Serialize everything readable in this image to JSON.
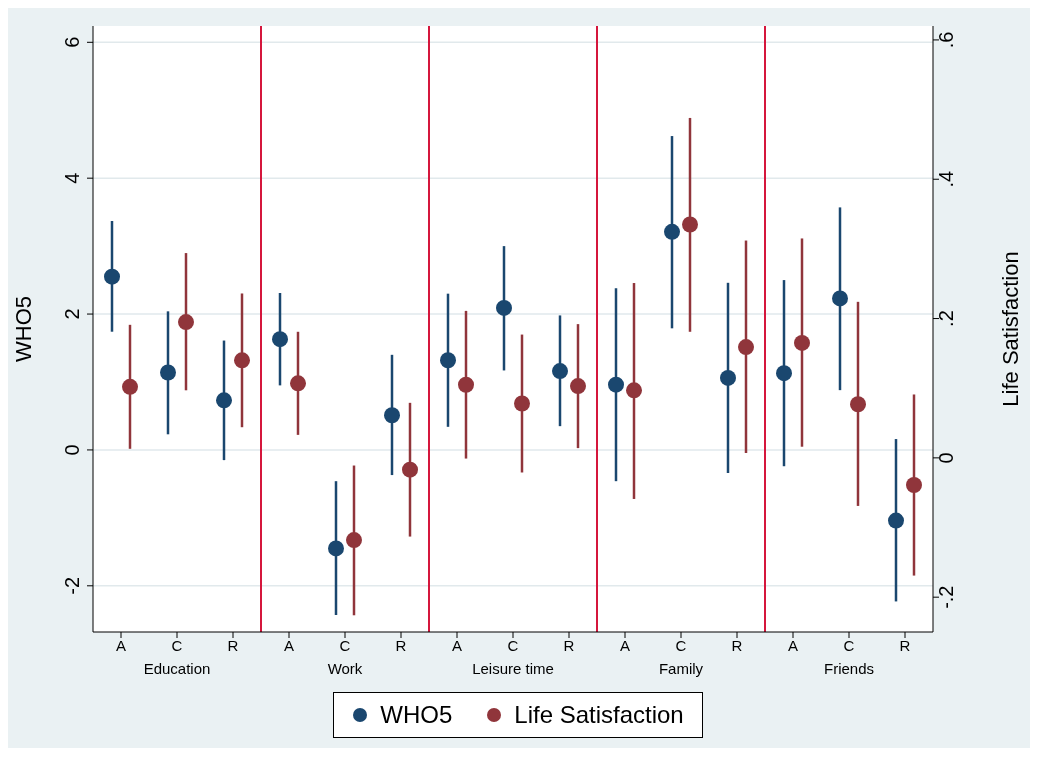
{
  "chart_data": {
    "type": "scatter",
    "ylabel": "WHO5",
    "y2label": "Life Satisfaction",
    "marker": "circle",
    "grid": "y",
    "legend": "bottom",
    "categories": [
      "A",
      "C",
      "R",
      "A",
      "C",
      "R",
      "A",
      "C",
      "R",
      "A",
      "C",
      "R",
      "A",
      "C",
      "R"
    ],
    "ylim": [
      -2.68,
      6.24
    ],
    "yticks": [
      -2,
      0,
      2,
      4,
      6
    ],
    "y2lim": [
      -0.25,
      0.62
    ],
    "y2ticks": [
      {
        "value": -0.2,
        "label": "-.2"
      },
      0,
      {
        "value": 0.2,
        "label": ".2"
      },
      {
        "value": 0.4,
        "label": ".4"
      },
      {
        "value": 0.6,
        "label": ".6"
      }
    ],
    "series": [
      {
        "name": "WHO5",
        "color": "#1a476f",
        "values": [
          2.55,
          1.14,
          0.73,
          1.63,
          -1.45,
          0.51,
          1.32,
          2.09,
          1.16,
          0.96,
          3.21,
          1.06,
          1.13,
          2.23,
          -1.04
        ],
        "errors": [
          [
            1.74,
            3.37
          ],
          [
            0.23,
            2.04
          ],
          [
            -0.15,
            1.61
          ],
          [
            0.95,
            2.31
          ],
          [
            -2.43,
            -0.46
          ],
          [
            -0.37,
            1.4
          ],
          [
            0.34,
            2.3
          ],
          [
            1.17,
            3.0
          ],
          [
            0.35,
            1.98
          ],
          [
            -0.46,
            2.38
          ],
          [
            1.79,
            4.62
          ],
          [
            -0.34,
            2.46
          ],
          [
            -0.24,
            2.5
          ],
          [
            0.88,
            3.57
          ],
          [
            -2.23,
            0.16
          ]
        ]
      },
      {
        "name": "Life Satisfaction",
        "color": "#90353b",
        "axis": "y2",
        "values": [
          0.102,
          0.195,
          0.14,
          0.107,
          -0.118,
          -0.017,
          0.105,
          0.078,
          0.103,
          0.097,
          0.335,
          0.159,
          0.165,
          0.077,
          -0.039
        ],
        "errors": [
          [
            0.013,
            0.191
          ],
          [
            0.097,
            0.294
          ],
          [
            0.044,
            0.236
          ],
          [
            0.033,
            0.181
          ],
          [
            -0.226,
            -0.011
          ],
          [
            -0.113,
            0.079
          ],
          [
            -0.001,
            0.211
          ],
          [
            -0.021,
            0.177
          ],
          [
            0.014,
            0.192
          ],
          [
            -0.059,
            0.251
          ],
          [
            0.181,
            0.488
          ],
          [
            0.007,
            0.312
          ],
          [
            0.016,
            0.315
          ],
          [
            -0.069,
            0.224
          ],
          [
            -0.169,
            0.091
          ]
        ]
      }
    ],
    "annotations": [
      "Education",
      "Work",
      "Leisure time",
      "Family",
      "Friends"
    ]
  }
}
